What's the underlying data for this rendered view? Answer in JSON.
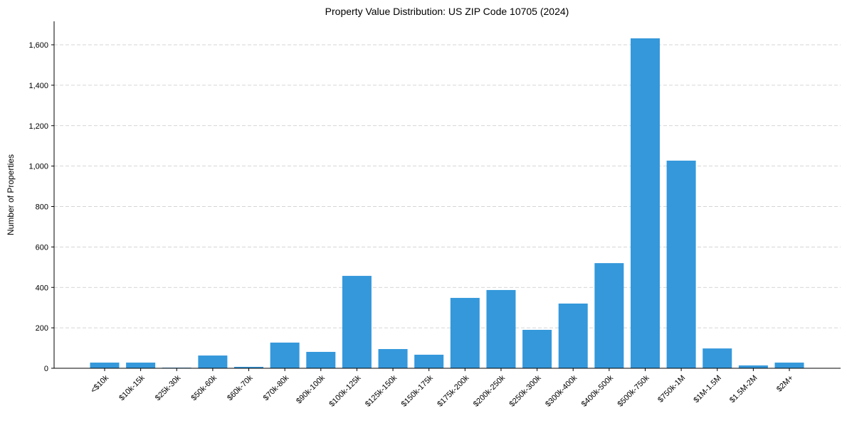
{
  "chart_data": {
    "type": "bar",
    "title": "Property Value Distribution: US ZIP Code 10705 (2024)",
    "xlabel": "",
    "ylabel": "Number of Properties",
    "ylim": [
      0,
      1720
    ],
    "yticks": [
      0,
      200,
      400,
      600,
      800,
      1000,
      1200,
      1400,
      1600
    ],
    "ytick_labels": [
      "0",
      "200",
      "400",
      "600",
      "800",
      "1,000",
      "1,200",
      "1,400",
      "1,600"
    ],
    "grid": "y dashed",
    "bar_color": "#3498db",
    "categories": [
      "<$10k",
      "$10k-15k",
      "$25k-30k",
      "$50k-60k",
      "$60k-70k",
      "$70k-80k",
      "$90k-100k",
      "$100k-125k",
      "$125k-150k",
      "$150k-175k",
      "$175k-200k",
      "$200k-250k",
      "$250k-300k",
      "$300k-400k",
      "$400k-500k",
      "$500k-750k",
      "$750k-1M",
      "$1M-1.5M",
      "$1.5M-2M",
      "$2M+"
    ],
    "values": [
      28,
      28,
      3,
      63,
      7,
      127,
      81,
      457,
      95,
      67,
      348,
      387,
      190,
      320,
      520,
      1632,
      1027,
      98,
      14,
      28
    ]
  }
}
